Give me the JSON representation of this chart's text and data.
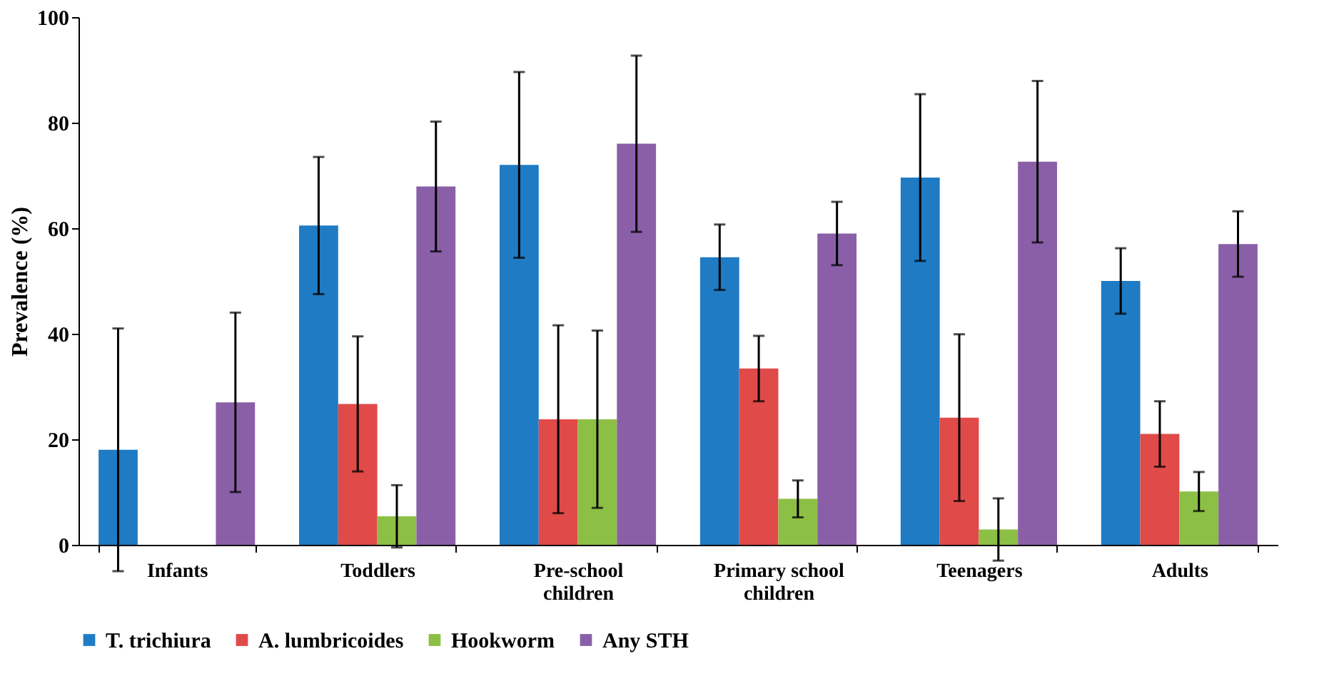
{
  "chart_data": {
    "type": "bar",
    "ylabel": "Prevalence (%)",
    "categories": [
      "Infants",
      "Toddlers",
      "Pre-school\nchildren",
      "Primary school\nchildren",
      "Teenagers",
      "Adults"
    ],
    "series": [
      {
        "name": "T. trichiura",
        "color": "#1f7bc4",
        "values": [
          18,
          60.5,
          72,
          54.5,
          69.6,
          50
        ],
        "errors": [
          23,
          13,
          17.6,
          6.2,
          15.8,
          6.2
        ]
      },
      {
        "name": "A. lumbricoides",
        "color": "#e04a48",
        "values": [
          null,
          26.7,
          23.8,
          33.4,
          24.1,
          21
        ],
        "errors": [
          null,
          12.8,
          17.8,
          6.2,
          15.8,
          6.2
        ]
      },
      {
        "name": "Hookworm",
        "color": "#8cbf45",
        "values": [
          null,
          5.4,
          23.8,
          8.7,
          2.9,
          10.1
        ],
        "errors": [
          null,
          5.9,
          16.8,
          3.5,
          5.9,
          3.7
        ]
      },
      {
        "name": "Any STH",
        "color": "#8a5fa8",
        "values": [
          27,
          67.9,
          76,
          59,
          72.6,
          57
        ],
        "errors": [
          17,
          12.3,
          16.7,
          6,
          15.3,
          6.2
        ]
      }
    ],
    "ylim": [
      0,
      100
    ],
    "yticks": [
      0,
      20,
      40,
      60,
      80,
      100
    ],
    "grid": false,
    "legend": "bottom"
  }
}
